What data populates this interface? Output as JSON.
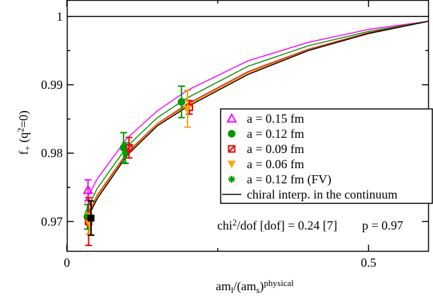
{
  "chart_data": {
    "type": "errorbar-scatter",
    "xlabel": [
      {
        "text": "am"
      },
      {
        "text": "l",
        "shift": "sub"
      },
      {
        "text": "/(am"
      },
      {
        "text": "s",
        "shift": "sub"
      },
      {
        "text": ")"
      },
      {
        "text": "physical",
        "shift": "sup"
      }
    ],
    "ylabel": [
      {
        "text": "f"
      },
      {
        "text": "+",
        "shift": "sub"
      },
      {
        "text": " (q"
      },
      {
        "text": "2",
        "shift": "sup"
      },
      {
        "text": "=0)"
      }
    ],
    "annotation": [
      {
        "text": "chi"
      },
      {
        "text": "2",
        "shift": "sup"
      },
      {
        "text": "/dof [dof] = 0.24 [7]"
      },
      {
        "text": "p = 0.97",
        "gap": true
      }
    ],
    "xlim": [
      0,
      0.6
    ],
    "ylim": [
      0.9656,
      1.0024
    ],
    "xticks": [
      0,
      0.5
    ],
    "yticks": [
      0.97,
      0.98,
      0.99,
      1
    ],
    "xminorticks": [
      0.25
    ],
    "yminorticks": [
      0.975,
      0.985,
      0.995
    ],
    "hline": 1,
    "curves": [
      {
        "color": "#ff00ff",
        "x": [
          0.03,
          0.05,
          0.1,
          0.15,
          0.2,
          0.3,
          0.4,
          0.5,
          0.6
        ],
        "values": [
          0.9728,
          0.9762,
          0.9822,
          0.9862,
          0.9892,
          0.9935,
          0.9962,
          0.9981,
          0.9993
        ]
      },
      {
        "color": "#009900",
        "x": [
          0.03,
          0.05,
          0.1,
          0.15,
          0.2,
          0.3,
          0.4,
          0.5,
          0.6
        ],
        "values": [
          0.9712,
          0.9748,
          0.981,
          0.9852,
          0.9881,
          0.9927,
          0.9957,
          0.9978,
          0.9993
        ]
      },
      {
        "color": "#ee0000",
        "x": [
          0.03,
          0.05,
          0.1,
          0.15,
          0.2,
          0.3,
          0.4,
          0.5,
          0.6
        ],
        "values": [
          0.9702,
          0.9738,
          0.9801,
          0.9843,
          0.9872,
          0.9919,
          0.9952,
          0.9976,
          0.9993
        ]
      },
      {
        "color": "#ffa500",
        "x": [
          0.03,
          0.05,
          0.1,
          0.15,
          0.2,
          0.3,
          0.4,
          0.5,
          0.6
        ],
        "values": [
          0.97,
          0.9736,
          0.9799,
          0.9842,
          0.987,
          0.9917,
          0.9951,
          0.9975,
          0.9993
        ]
      }
    ],
    "series": [
      {
        "name": "a = 0.15 fm",
        "color": "#ff00ff",
        "marker": "triangle-up",
        "x": [
          0.035
        ],
        "values": [
          0.9746
        ],
        "errors": [
          0.0015
        ]
      },
      {
        "name": "a = 0.12 fm",
        "color": "#009900",
        "marker": "circle",
        "x": [
          0.034,
          0.094,
          0.19
        ],
        "values": [
          0.9707,
          0.9808,
          0.9875
        ],
        "errors": [
          0.0018,
          0.0022,
          0.0023
        ]
      },
      {
        "name": "a = 0.09 fm",
        "color": "#ee0000",
        "marker": "square-x",
        "x": [
          0.036,
          0.103,
          0.203
        ],
        "values": [
          0.97,
          0.9808,
          0.9867
        ],
        "errors": [
          0.0035,
          0.0015,
          0.001
        ]
      },
      {
        "name": "a = 0.06 fm",
        "color": "#ffa500",
        "marker": "triangle-down",
        "x": [
          0.037,
          0.2
        ],
        "values": [
          0.9697,
          0.9865
        ],
        "errors": [
          0.0015,
          0.0027
        ]
      },
      {
        "name": "a = 0.12 fm (FV)",
        "color": "#009900",
        "marker": "star",
        "x": [
          0.097
        ],
        "values": [
          0.98
        ],
        "errors": [
          0.0015
        ]
      },
      {
        "name": "chiral interp. in the continuum",
        "color": "#000000",
        "marker": "line",
        "x": [
          0.03,
          0.05,
          0.1,
          0.15,
          0.2,
          0.3,
          0.4,
          0.5,
          0.6
        ],
        "values": [
          0.9698,
          0.9733,
          0.9797,
          0.984,
          0.9868,
          0.9915,
          0.995,
          0.9975,
          0.9993
        ]
      },
      {
        "name": null,
        "color": "#000000",
        "marker": "square",
        "x": [
          0.04
        ],
        "values": [
          0.9705
        ],
        "errors": [
          0.0025
        ]
      }
    ],
    "legend": "upper-right"
  }
}
